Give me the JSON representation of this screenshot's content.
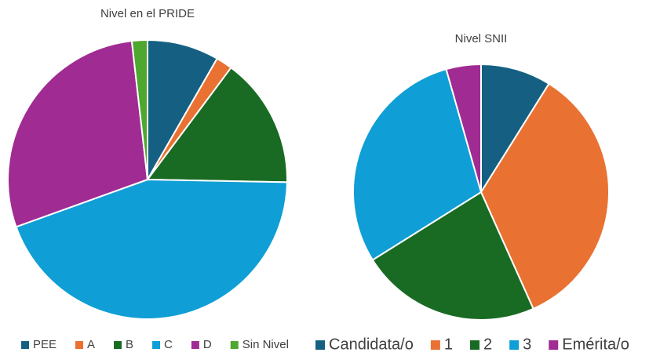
{
  "chart_data": [
    {
      "type": "pie",
      "title": "Nivel en el PRIDE",
      "categories": [
        "PEE",
        "A",
        "B",
        "C",
        "D",
        "Sin Nivel"
      ],
      "values": [
        8.3,
        1.9,
        15.1,
        44.2,
        28.7,
        1.8
      ],
      "colors": [
        "#156082",
        "#e97132",
        "#196b24",
        "#0f9ed5",
        "#a02b93",
        "#4ea72e"
      ]
    },
    {
      "type": "pie",
      "title": "Nivel SNII",
      "categories": [
        "Candidata/o",
        "1",
        "2",
        "3",
        "Emérita/o"
      ],
      "values": [
        8.9,
        34.4,
        22.8,
        29.5,
        4.4
      ],
      "colors": [
        "#156082",
        "#e97132",
        "#196b24",
        "#0f9ed5",
        "#a02b93"
      ]
    }
  ]
}
